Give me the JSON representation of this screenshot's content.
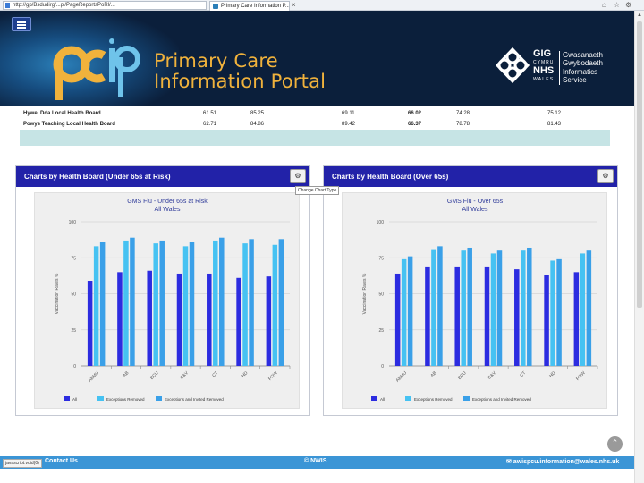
{
  "browser": {
    "url": "http://gp/Bsdudirg/...pl/PageReportsPoRl/...",
    "tab_title": "Primary Care Information P...",
    "tab_close": "×"
  },
  "header": {
    "title_line1": "Primary Care",
    "title_line2": "Information Portal",
    "logo_text": "pcip",
    "partner": {
      "gig": "GIG",
      "cymru": "CYMRU",
      "nhs": "NHS",
      "wales": "WALES",
      "welsh_name_1": "Gwasanaeth",
      "welsh_name_2": "Gwybodaeth",
      "english_name_1": "Informatics",
      "english_name_2": "Service"
    }
  },
  "table": {
    "rows": [
      {
        "name": "Hywel Dda Local Health Board",
        "values": [
          "61.51",
          "85.25",
          "69.11",
          "66.02",
          "74.28",
          "75.12"
        ]
      },
      {
        "name": "Powys Teaching Local Health Board",
        "values": [
          "62.71",
          "84.86",
          "89.42",
          "66.37",
          "78.78",
          "81.43"
        ]
      }
    ]
  },
  "panels": [
    {
      "title": "Charts by Health Board (Under 65s at Risk)",
      "chart_type_button": "⚙",
      "chart_data": {
        "type": "bar",
        "title": "GMS Flu - Under 65s at Risk",
        "subtitle": "All Wales",
        "ylabel": "Vaccination Rates %",
        "ylim": [
          0,
          100
        ],
        "yticks": [
          0,
          25,
          50,
          75,
          100
        ],
        "categories": [
          "ABMU",
          "AB",
          "BCU",
          "C&V",
          "CT",
          "HD",
          "POW"
        ],
        "series": [
          {
            "name": "All",
            "color": "#2c2ce0",
            "values": [
              59,
              65,
              66,
              64,
              64,
              61,
              62
            ]
          },
          {
            "name": "Exceptions Removed",
            "color": "#46c2f2",
            "values": [
              83,
              87,
              85,
              83,
              87,
              85,
              84
            ]
          },
          {
            "name": "Exceptions and Invited Removed",
            "color": "#3aa0e8",
            "values": [
              86,
              89,
              87,
              86,
              89,
              88,
              88
            ]
          }
        ],
        "legend": "bottom",
        "grid": true
      }
    },
    {
      "title": "Charts by Health Board (Over 65s)",
      "chart_type_button": "⚙",
      "chart_data": {
        "type": "bar",
        "title": "GMS Flu - Over 65s",
        "subtitle": "All Wales",
        "ylabel": "Vaccination Rates %",
        "ylim": [
          0,
          100
        ],
        "yticks": [
          0,
          25,
          50,
          75,
          100
        ],
        "categories": [
          "ABMU",
          "AB",
          "BCU",
          "C&V",
          "CT",
          "HD",
          "POW"
        ],
        "series": [
          {
            "name": "All",
            "color": "#2c2ce0",
            "values": [
              64,
              69,
              69,
              69,
              67,
              63,
              65
            ]
          },
          {
            "name": "Exceptions Removed",
            "color": "#46c2f2",
            "values": [
              74,
              81,
              80,
              78,
              80,
              73,
              78
            ]
          },
          {
            "name": "Exceptions and Invited Removed",
            "color": "#3aa0e8",
            "values": [
              76,
              83,
              82,
              80,
              82,
              74,
              80
            ]
          }
        ],
        "legend": "bottom",
        "grid": true
      }
    }
  ],
  "tooltip": "Change Chart Type",
  "footer": {
    "status": "javascript:void(0)",
    "contact": "Contact Us",
    "copyright": "© NWIS",
    "email": "✉ awispcu.information@wales.nhs.uk"
  }
}
